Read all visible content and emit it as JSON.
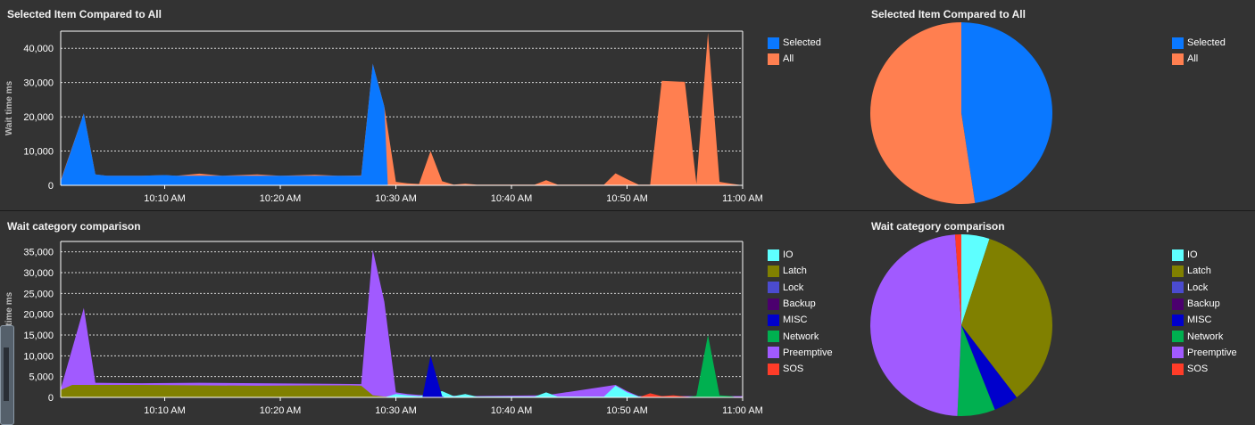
{
  "panels": {
    "top_left_title": "Selected Item Compared to All",
    "top_right_title": "Selected Item Compared to All",
    "bottom_left_title": "Wait category comparison",
    "bottom_right_title": "Wait category comparison"
  },
  "colors": {
    "Selected": "#0a78ff",
    "All": "#ff7f50",
    "IO": "#5effff",
    "Latch": "#808000",
    "Lock": "#4b4bcf",
    "Backup": "#4b006e",
    "MISC": "#0000cc",
    "Network": "#00b050",
    "Preemptive": "#a15aff",
    "SOS": "#ff3c28"
  },
  "chart_data": [
    {
      "type": "area",
      "title": "Selected Item Compared to All",
      "ylabel": "Wait time ms",
      "ylim": [
        0,
        45000
      ],
      "yticks": [
        0,
        10000,
        20000,
        30000,
        40000
      ],
      "ytick_labels": [
        "0",
        "10,000",
        "20,000",
        "30,000",
        "40,000"
      ],
      "xlim": [
        "10:01 AM",
        "11:00 AM"
      ],
      "xtick_labels": [
        "10:10 AM",
        "10:20 AM",
        "10:30 AM",
        "10:40 AM",
        "10:50 AM",
        "11:00 AM"
      ],
      "legend": [
        "Selected",
        "All"
      ],
      "legend_position": "right",
      "grid": true,
      "series": [
        {
          "name": "All",
          "points": [
            [
              1,
              1500
            ],
            [
              3,
              21000
            ],
            [
              4,
              3200
            ],
            [
              5,
              2800
            ],
            [
              8,
              2800
            ],
            [
              10,
              3000
            ],
            [
              11,
              2800
            ],
            [
              13,
              3400
            ],
            [
              15,
              2800
            ],
            [
              18,
              3200
            ],
            [
              20,
              2800
            ],
            [
              23,
              3100
            ],
            [
              25,
              2800
            ],
            [
              27,
              2900
            ],
            [
              28,
              35500
            ],
            [
              29,
              23000
            ],
            [
              30,
              1000
            ],
            [
              31,
              600
            ],
            [
              32,
              400
            ],
            [
              33,
              10000
            ],
            [
              34,
              1200
            ],
            [
              35,
              200
            ],
            [
              36,
              500
            ],
            [
              37,
              200
            ],
            [
              42,
              200
            ],
            [
              43,
              1500
            ],
            [
              44,
              200
            ],
            [
              48,
              200
            ],
            [
              49,
              3500
            ],
            [
              50,
              1800
            ],
            [
              51,
              200
            ],
            [
              52,
              200
            ],
            [
              53,
              30500
            ],
            [
              55,
              30200
            ],
            [
              56,
              500
            ],
            [
              57,
              44500
            ],
            [
              58,
              1000
            ],
            [
              59,
              500
            ],
            [
              60,
              0
            ]
          ]
        },
        {
          "name": "Selected",
          "points": [
            [
              1,
              1200
            ],
            [
              3,
              21000
            ],
            [
              4,
              3200
            ],
            [
              5,
              2800
            ],
            [
              8,
              2800
            ],
            [
              10,
              3000
            ],
            [
              11,
              2800
            ],
            [
              13,
              2800
            ],
            [
              15,
              2800
            ],
            [
              18,
              2800
            ],
            [
              20,
              2800
            ],
            [
              23,
              2800
            ],
            [
              25,
              2800
            ],
            [
              27,
              2800
            ],
            [
              28,
              35500
            ],
            [
              29,
              23000
            ],
            [
              29.3,
              0
            ],
            [
              60,
              0
            ]
          ]
        }
      ]
    },
    {
      "type": "pie",
      "title": "Selected Item Compared to All",
      "legend": [
        "Selected",
        "All"
      ],
      "legend_position": "right",
      "slices": [
        {
          "name": "Selected",
          "value": 47.6
        },
        {
          "name": "All",
          "value": 52.4
        }
      ]
    },
    {
      "type": "area",
      "title": "Wait category comparison",
      "ylabel": "Wait time ms",
      "ylim": [
        0,
        37500
      ],
      "yticks": [
        0,
        5000,
        10000,
        15000,
        20000,
        25000,
        30000,
        35000
      ],
      "ytick_labels": [
        "0",
        "5,000",
        "10,000",
        "15,000",
        "20,000",
        "25,000",
        "30,000",
        "35,000"
      ],
      "xlim": [
        "10:01 AM",
        "11:00 AM"
      ],
      "xtick_labels": [
        "10:10 AM",
        "10:20 AM",
        "10:30 AM",
        "10:40 AM",
        "10:50 AM",
        "11:00 AM"
      ],
      "legend": [
        "IO",
        "Latch",
        "Lock",
        "Backup",
        "MISC",
        "Network",
        "Preemptive",
        "SOS"
      ],
      "legend_position": "right",
      "grid": true,
      "series": [
        {
          "name": "Preemptive",
          "points": [
            [
              1,
              2000
            ],
            [
              3,
              21500
            ],
            [
              4,
              3500
            ],
            [
              8,
              3400
            ],
            [
              13,
              3500
            ],
            [
              18,
              3400
            ],
            [
              23,
              3300
            ],
            [
              27,
              3200
            ],
            [
              28,
              35500
            ],
            [
              29,
              23000
            ],
            [
              30,
              1200
            ],
            [
              31,
              800
            ],
            [
              32,
              600
            ],
            [
              33,
              400
            ],
            [
              34,
              500
            ],
            [
              36,
              300
            ],
            [
              43,
              500
            ],
            [
              49,
              3000
            ],
            [
              50,
              1500
            ],
            [
              51,
              300
            ],
            [
              60,
              300
            ]
          ]
        },
        {
          "name": "Latch",
          "points": [
            [
              1,
              1800
            ],
            [
              2,
              3000
            ],
            [
              8,
              3000
            ],
            [
              13,
              2900
            ],
            [
              18,
              2800
            ],
            [
              23,
              2900
            ],
            [
              26,
              2900
            ],
            [
              27,
              2800
            ],
            [
              28,
              500
            ],
            [
              29,
              200
            ],
            [
              60,
              0
            ]
          ]
        },
        {
          "name": "IO",
          "points": [
            [
              29,
              0
            ],
            [
              30,
              800
            ],
            [
              31,
              500
            ],
            [
              32,
              300
            ],
            [
              34,
              1500
            ],
            [
              35,
              300
            ],
            [
              36,
              800
            ],
            [
              37,
              200
            ],
            [
              42,
              200
            ],
            [
              43,
              1200
            ],
            [
              44,
              200
            ],
            [
              48,
              200
            ],
            [
              49,
              2800
            ],
            [
              50,
              1200
            ],
            [
              51,
              200
            ],
            [
              60,
              0
            ]
          ]
        },
        {
          "name": "MISC",
          "points": [
            [
              32,
              0
            ],
            [
              32.3,
              100
            ],
            [
              33,
              10000
            ],
            [
              34,
              300
            ],
            [
              34.3,
              0
            ]
          ]
        },
        {
          "name": "SOS",
          "points": [
            [
              51,
              0
            ],
            [
              52,
              1000
            ],
            [
              53,
              300
            ],
            [
              54,
              500
            ],
            [
              55,
              200
            ],
            [
              56,
              0
            ]
          ]
        },
        {
          "name": "Network",
          "points": [
            [
              55,
              0
            ],
            [
              56,
              400
            ],
            [
              57,
              15000
            ],
            [
              58,
              500
            ],
            [
              59,
              300
            ],
            [
              59.5,
              0
            ]
          ]
        }
      ]
    },
    {
      "type": "pie",
      "title": "Wait category comparison",
      "legend": [
        "IO",
        "Latch",
        "Lock",
        "Backup",
        "MISC",
        "Network",
        "Preemptive",
        "SOS"
      ],
      "legend_position": "right",
      "slices": [
        {
          "name": "IO",
          "value": 5.0
        },
        {
          "name": "Latch",
          "value": 34.6
        },
        {
          "name": "MISC",
          "value": 4.4
        },
        {
          "name": "Network",
          "value": 6.7
        },
        {
          "name": "Preemptive",
          "value": 48.2
        },
        {
          "name": "SOS",
          "value": 1.1
        }
      ]
    }
  ]
}
